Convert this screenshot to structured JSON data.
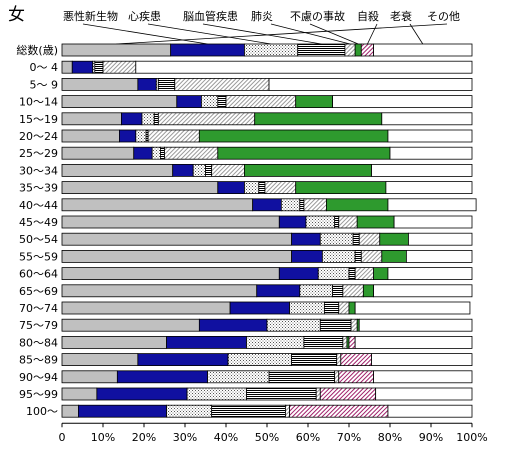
{
  "chart_data": {
    "type": "bar",
    "orientation": "horizontal",
    "stacked": "percent",
    "title": "女",
    "ylabel": "総数(歳)",
    "xlim": [
      0,
      100
    ],
    "x_ticks": [
      "0",
      "10%",
      "20%",
      "30%",
      "40%",
      "50%",
      "60%",
      "70%",
      "80%",
      "90%",
      "100%"
    ],
    "categories": [
      "",
      "0〜 4",
      "5〜 9",
      "10〜14",
      "15〜19",
      "20〜24",
      "25〜29",
      "30〜34",
      "35〜39",
      "40〜44",
      "45〜49",
      "50〜54",
      "55〜59",
      "60〜64",
      "65〜69",
      "70〜74",
      "75〜79",
      "80〜84",
      "85〜89",
      "90〜94",
      "95〜99",
      "100〜"
    ],
    "series": [
      {
        "name": "その他",
        "color": "#c0c0c0",
        "pattern": "solid",
        "values": [
          26.5,
          2.5,
          18.5,
          28,
          14.5,
          14,
          17.5,
          27,
          38,
          46.5,
          53,
          56,
          56,
          53,
          47.5,
          41,
          33.5,
          25.5,
          18.5,
          13.5,
          8.5,
          4
        ]
      },
      {
        "name": "悪性新生物",
        "color": "#1010a0",
        "pattern": "solid",
        "values": [
          18,
          5,
          4.5,
          6,
          5,
          4,
          4.5,
          5,
          6.5,
          7,
          6.5,
          7,
          7.5,
          9.5,
          10.5,
          14.5,
          16.5,
          19.5,
          22,
          22,
          22,
          21.5
        ]
      },
      {
        "name": "心疾患",
        "color": "#ffffff",
        "pattern": "dots",
        "values": [
          13,
          0.5,
          0.5,
          4,
          3,
          2.5,
          2,
          3,
          3.5,
          4.5,
          7,
          8,
          8,
          7.5,
          8,
          8.5,
          13,
          14,
          15.5,
          15,
          14.5,
          11
        ]
      },
      {
        "name": "脳血管疾患",
        "color": "#ffffff",
        "pattern": "hlines",
        "values": [
          11.5,
          2,
          4,
          2,
          1,
          0.5,
          1,
          1.5,
          1.5,
          1,
          1,
          1.5,
          1.5,
          1.5,
          2.5,
          3.5,
          7.5,
          9.5,
          11,
          16,
          17,
          18
        ]
      },
      {
        "name": "肺炎",
        "color": "#ffffff",
        "pattern": "diagonal",
        "values": [
          2.5,
          8,
          23,
          17,
          23.5,
          12.5,
          13,
          8,
          7.5,
          5.5,
          4.5,
          5,
          5,
          4.5,
          5,
          2.5,
          1.5,
          1,
          1,
          1,
          1,
          1
        ]
      },
      {
        "name": "不慮の事故",
        "color": "#2e9a2e",
        "pattern": "solid",
        "values": [
          1.5,
          0,
          0,
          9,
          31,
          46,
          42,
          31,
          22,
          15,
          9,
          7,
          6,
          3.5,
          2.5,
          1.5,
          0.5,
          0.5,
          0,
          0,
          0,
          0
        ]
      },
      {
        "name": "自殺",
        "color": "#ffffff",
        "pattern": "pink-diag",
        "values": [
          3,
          0,
          0,
          0,
          0,
          0,
          0,
          0,
          0,
          0,
          0,
          0,
          0,
          0,
          0,
          0,
          0,
          1.5,
          7.5,
          8.5,
          13.5,
          24
        ]
      },
      {
        "name": "老衰",
        "color": "#ffffff",
        "pattern": "solid",
        "values": [
          24,
          82,
          49.5,
          34,
          22,
          20.5,
          20,
          24.5,
          21,
          21.5,
          19,
          15.5,
          16,
          20.5,
          24,
          28,
          27.5,
          28.5,
          24.5,
          24,
          23.5,
          20.5
        ]
      }
    ],
    "legend": {
      "placement": "top",
      "labels": [
        "悪性新生物",
        "心疾患",
        "脳血管疾患",
        "肺炎",
        "不慮の事故",
        "自殺",
        "老衰",
        "その他"
      ]
    },
    "grid": false
  }
}
